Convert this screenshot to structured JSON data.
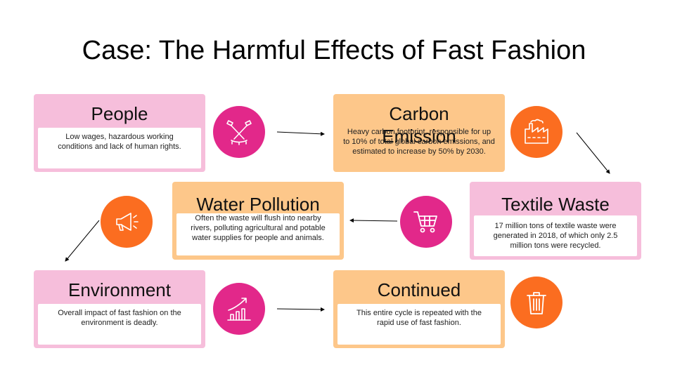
{
  "title": "Case: The Harmful Effects of Fast Fashion",
  "colors": {
    "pink": "#f6bedb",
    "orange": "#fdc78a",
    "magenta_circle": "#e2288a",
    "orange_circle": "#fb6d20"
  },
  "cards": {
    "people": {
      "heading": "People",
      "text": "Low wages, hazardous working conditions and lack of human rights."
    },
    "carbon": {
      "heading": "Carbon Emission",
      "text": "Heavy carbon footprint, responsible for up to 10% of total global carbon emissions, and estimated to increase by 50% by 2030."
    },
    "textile": {
      "heading": "Textile Waste",
      "text": "17 million tons of textile waste were generated in 2018, of which only 2.5 million tons were recycled."
    },
    "water": {
      "heading": "Water Pollution",
      "text": "Often the waste will flush into nearby rivers, polluting agricultural and potable water supplies for people and animals."
    },
    "environment": {
      "heading": "Environment",
      "text": "Overall impact of fast fashion on the environment is deadly."
    },
    "continued": {
      "heading": "Continued",
      "text": "This entire cycle is repeated with the rapid use of fast fashion."
    }
  },
  "icons": {
    "people": "spotlights-icon",
    "carbon": "factory-icon",
    "textile": "shopping-cart-icon",
    "water": "megaphone-icon",
    "environment": "growth-chart-icon",
    "continued": "trash-can-icon"
  }
}
